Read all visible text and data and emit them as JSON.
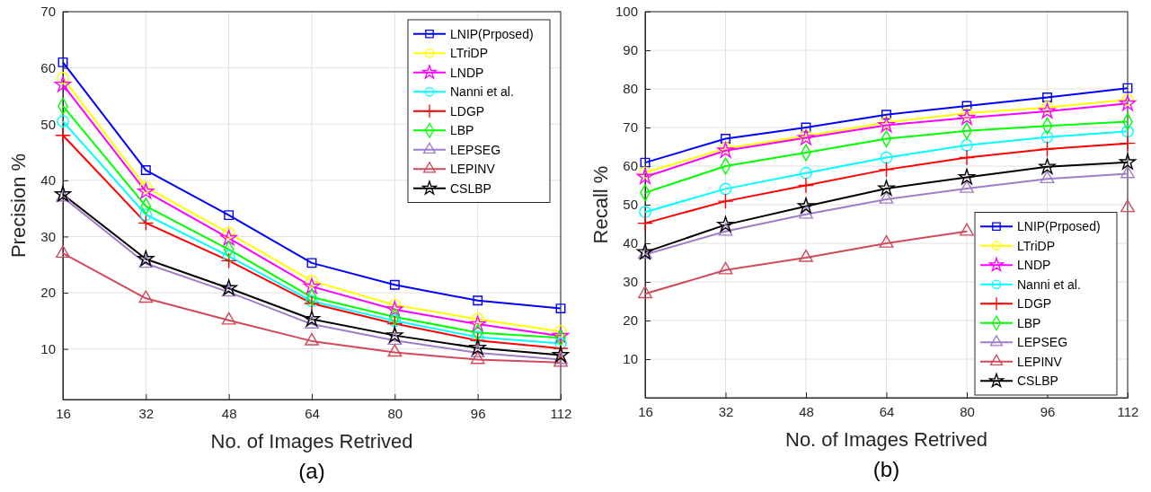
{
  "chart_data": [
    {
      "type": "line",
      "xlabel": "No. of Images Retrived",
      "ylabel": "Precision %",
      "annotations": [
        "(a)"
      ],
      "x": [
        16,
        32,
        48,
        64,
        80,
        96,
        112
      ],
      "xlim": [
        16,
        112
      ],
      "xticks": [
        16,
        32,
        48,
        64,
        80,
        96,
        112
      ],
      "ylim": [
        1,
        70
      ],
      "yticks": [
        10,
        20,
        30,
        40,
        50,
        60,
        70
      ],
      "grid": true,
      "legend": "top right",
      "line_style": "solid",
      "series": [
        {
          "name": "LNIP(Prposed)",
          "color": "#0000ff",
          "marker": "square",
          "values": [
            61.0,
            41.8,
            33.8,
            25.3,
            21.4,
            18.6,
            17.2
          ]
        },
        {
          "name": "LTriDP",
          "color": "#ffff00",
          "marker": "circle",
          "values": [
            58.2,
            38.8,
            30.6,
            22.1,
            17.8,
            15.3,
            13.1
          ]
        },
        {
          "name": "LNDP",
          "color": "#ff00ff",
          "marker": "star",
          "values": [
            57.0,
            38.0,
            29.7,
            21.1,
            17.0,
            14.4,
            12.3
          ]
        },
        {
          "name": "Nanni et al.",
          "color": "#00ffff",
          "marker": "circle",
          "values": [
            50.5,
            33.9,
            26.5,
            18.5,
            15.0,
            12.1,
            11.0
          ]
        },
        {
          "name": "LDGP",
          "color": "#ff0000",
          "marker": "cross",
          "values": [
            48.0,
            32.4,
            25.7,
            18.1,
            14.5,
            11.5,
            10.1
          ]
        },
        {
          "name": "LBP",
          "color": "#00ff00",
          "marker": "diamond",
          "values": [
            53.2,
            35.4,
            27.7,
            19.2,
            15.7,
            12.9,
            12.0
          ]
        },
        {
          "name": "LEPSEG",
          "color": "#a07cc8",
          "marker": "triangle",
          "values": [
            37.0,
            25.2,
            20.1,
            14.4,
            11.5,
            9.3,
            8.1
          ]
        },
        {
          "name": "LEPINV",
          "color": "#d04a5a",
          "marker": "triangle",
          "values": [
            27.0,
            19.0,
            15.1,
            11.4,
            9.4,
            8.1,
            7.6
          ]
        },
        {
          "name": "CSLBP",
          "color": "#000000",
          "marker": "star",
          "values": [
            37.5,
            26.0,
            20.8,
            15.3,
            12.4,
            10.2,
            8.9
          ]
        }
      ]
    },
    {
      "type": "line",
      "xlabel": "No. of Images Retrived",
      "ylabel": "Recall %",
      "annotations": [
        "(b)"
      ],
      "x": [
        16,
        32,
        48,
        64,
        80,
        96,
        112
      ],
      "xlim": [
        16,
        112
      ],
      "xticks": [
        16,
        32,
        48,
        64,
        80,
        96,
        112
      ],
      "ylim": [
        0,
        100
      ],
      "yticks": [
        10,
        20,
        30,
        40,
        50,
        60,
        70,
        80,
        90,
        100
      ],
      "grid": true,
      "legend": "bottom right",
      "line_style": "solid",
      "series": [
        {
          "name": "LNIP(Prposed)",
          "color": "#0000ff",
          "marker": "square",
          "values": [
            60.9,
            67.1,
            70.0,
            73.3,
            75.6,
            77.8,
            80.2
          ]
        },
        {
          "name": "LTriDP",
          "color": "#ffff00",
          "marker": "circle",
          "values": [
            58.3,
            64.6,
            67.8,
            71.3,
            73.7,
            75.2,
            77.2
          ]
        },
        {
          "name": "LNDP",
          "color": "#ff00ff",
          "marker": "star",
          "values": [
            57.2,
            64.0,
            67.3,
            70.6,
            72.5,
            74.2,
            76.2
          ]
        },
        {
          "name": "Nanni et al.",
          "color": "#00ffff",
          "marker": "circle",
          "values": [
            48.1,
            54.1,
            58.2,
            62.2,
            65.4,
            67.5,
            69.0
          ]
        },
        {
          "name": "LDGP",
          "color": "#ff0000",
          "marker": "cross",
          "values": [
            45.2,
            50.9,
            55.0,
            59.1,
            62.2,
            64.4,
            65.9
          ]
        },
        {
          "name": "LBP",
          "color": "#00ff00",
          "marker": "diamond",
          "values": [
            53.1,
            60.0,
            63.5,
            67.1,
            69.1,
            70.4,
            71.5
          ]
        },
        {
          "name": "LEPSEG",
          "color": "#a07cc8",
          "marker": "triangle",
          "values": [
            37.1,
            43.1,
            47.5,
            51.4,
            54.2,
            56.7,
            58.0
          ]
        },
        {
          "name": "LEPINV",
          "color": "#d04a5a",
          "marker": "triangle",
          "values": [
            26.9,
            33.1,
            36.3,
            40.0,
            43.1,
            null,
            49.2
          ]
        },
        {
          "name": "CSLBP",
          "color": "#000000",
          "marker": "star",
          "values": [
            37.7,
            44.8,
            49.6,
            54.2,
            57.1,
            59.8,
            61.0
          ]
        }
      ]
    }
  ]
}
